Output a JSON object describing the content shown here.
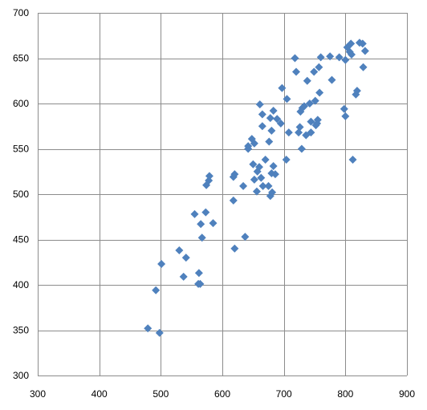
{
  "chart_data": {
    "type": "scatter",
    "title": "",
    "xlabel": "",
    "ylabel": "",
    "xlim": [
      300,
      900
    ],
    "ylim": [
      300,
      700
    ],
    "x_ticks": [
      300,
      400,
      500,
      600,
      700,
      800,
      900
    ],
    "y_ticks": [
      300,
      350,
      400,
      450,
      500,
      550,
      600,
      650,
      700
    ],
    "grid": {
      "x": true,
      "y": true
    },
    "marker": "diamond",
    "marker_color": "#4f81bd",
    "series": [
      {
        "points": [
          [
            479,
            352
          ],
          [
            498,
            347
          ],
          [
            492,
            394
          ],
          [
            501,
            423
          ],
          [
            530,
            438
          ],
          [
            537,
            409
          ],
          [
            541,
            430
          ],
          [
            555,
            478
          ],
          [
            562,
            413
          ],
          [
            561,
            401
          ],
          [
            564,
            401
          ],
          [
            565,
            467
          ],
          [
            567,
            452
          ],
          [
            573,
            480
          ],
          [
            574,
            510
          ],
          [
            579,
            520
          ],
          [
            578,
            515
          ],
          [
            585,
            468
          ],
          [
            618,
            493
          ],
          [
            618,
            519
          ],
          [
            620,
            522
          ],
          [
            620,
            440
          ],
          [
            634,
            509
          ],
          [
            637,
            453
          ],
          [
            642,
            553
          ],
          [
            642,
            550
          ],
          [
            648,
            561
          ],
          [
            650,
            533
          ],
          [
            652,
            516
          ],
          [
            652,
            556
          ],
          [
            656,
            503
          ],
          [
            657,
            525
          ],
          [
            660,
            530
          ],
          [
            661,
            599
          ],
          [
            663,
            518
          ],
          [
            665,
            588
          ],
          [
            665,
            575
          ],
          [
            666,
            509
          ],
          [
            670,
            538
          ],
          [
            675,
            509
          ],
          [
            676,
            558
          ],
          [
            678,
            584
          ],
          [
            678,
            498
          ],
          [
            680,
            570
          ],
          [
            681,
            502
          ],
          [
            680,
            523
          ],
          [
            683,
            592
          ],
          [
            683,
            531
          ],
          [
            686,
            522
          ],
          [
            689,
            583
          ],
          [
            695,
            578
          ],
          [
            697,
            617
          ],
          [
            704,
            538
          ],
          [
            705,
            605
          ],
          [
            708,
            568
          ],
          [
            718,
            650
          ],
          [
            720,
            635
          ],
          [
            724,
            568
          ],
          [
            726,
            574
          ],
          [
            727,
            591
          ],
          [
            729,
            550
          ],
          [
            730,
            595
          ],
          [
            733,
            597
          ],
          [
            736,
            565
          ],
          [
            738,
            625
          ],
          [
            742,
            600
          ],
          [
            744,
            580
          ],
          [
            744,
            568
          ],
          [
            749,
            635
          ],
          [
            751,
            603
          ],
          [
            752,
            576
          ],
          [
            754,
            578
          ],
          [
            755,
            582
          ],
          [
            757,
            640
          ],
          [
            758,
            612
          ],
          [
            760,
            651
          ],
          [
            775,
            652
          ],
          [
            778,
            626
          ],
          [
            790,
            651
          ],
          [
            798,
            594
          ],
          [
            800,
            648
          ],
          [
            800,
            586
          ],
          [
            803,
            662
          ],
          [
            807,
            657
          ],
          [
            809,
            666
          ],
          [
            810,
            654
          ],
          [
            812,
            538
          ],
          [
            817,
            610
          ],
          [
            819,
            614
          ],
          [
            823,
            667
          ],
          [
            828,
            666
          ],
          [
            829,
            640
          ],
          [
            832,
            658
          ]
        ]
      }
    ]
  }
}
